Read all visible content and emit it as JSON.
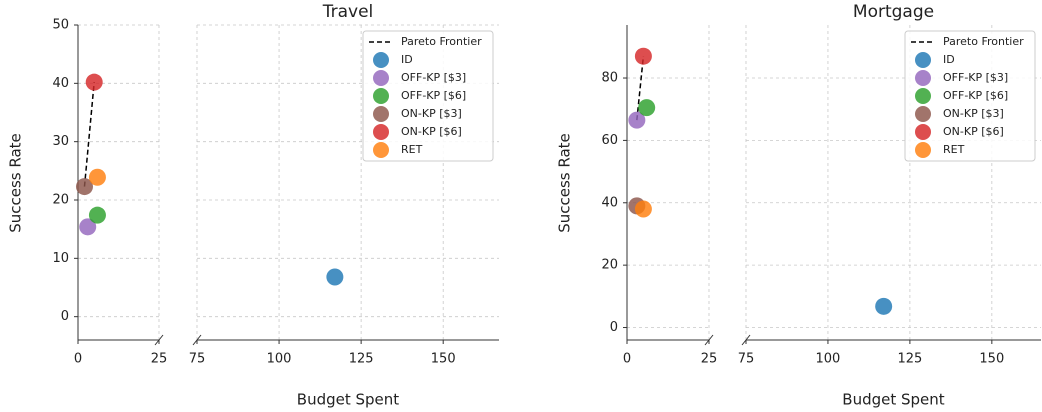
{
  "chart_data": [
    {
      "type": "scatter",
      "title": "Travel",
      "x_label": "Budget Spent",
      "y_label": "Success Rate",
      "xlim_segments": [
        [
          0,
          25
        ],
        [
          75,
          167
        ]
      ],
      "xticks": [
        0,
        25,
        75,
        100,
        125,
        150
      ],
      "ylim": [
        -4,
        50
      ],
      "yticks": [
        0,
        10,
        20,
        30,
        40,
        50
      ],
      "grid": true,
      "legend": "upper right",
      "pareto": {
        "name": "Pareto Frontier",
        "color": "#000000",
        "x": [
          2,
          5
        ],
        "values": [
          22.3,
          40.2
        ]
      },
      "series": [
        {
          "name": "ID",
          "color": "#1f77b4",
          "x": [
            117
          ],
          "values": [
            6.8
          ]
        },
        {
          "name": "OFF-KP [$3]",
          "color": "#9467bd",
          "x": [
            3
          ],
          "values": [
            15.4
          ]
        },
        {
          "name": "OFF-KP [$6]",
          "color": "#2ca02c",
          "x": [
            6
          ],
          "values": [
            17.4
          ]
        },
        {
          "name": "ON-KP [$3]",
          "color": "#8c564b",
          "x": [
            2
          ],
          "values": [
            22.3
          ]
        },
        {
          "name": "ON-KP [$6]",
          "color": "#d62728",
          "x": [
            5
          ],
          "values": [
            40.2
          ]
        },
        {
          "name": "RET",
          "color": "#ff7f0e",
          "x": [
            6
          ],
          "values": [
            23.9
          ]
        }
      ]
    },
    {
      "type": "scatter",
      "title": "Mortgage",
      "x_label": "Budget Spent",
      "y_label": "Success Rate",
      "xlim_segments": [
        [
          0,
          25
        ],
        [
          75,
          165
        ]
      ],
      "xticks": [
        0,
        25,
        75,
        100,
        125,
        150
      ],
      "ylim": [
        -4,
        97
      ],
      "yticks": [
        0,
        20,
        40,
        60,
        80
      ],
      "grid": true,
      "legend": "upper right",
      "pareto": {
        "name": "Pareto Frontier",
        "color": "#000000",
        "x": [
          3,
          5
        ],
        "values": [
          66.5,
          87
        ]
      },
      "series": [
        {
          "name": "ID",
          "color": "#1f77b4",
          "x": [
            117
          ],
          "values": [
            6.8
          ]
        },
        {
          "name": "OFF-KP [$3]",
          "color": "#9467bd",
          "x": [
            3
          ],
          "values": [
            66.5
          ]
        },
        {
          "name": "OFF-KP [$6]",
          "color": "#2ca02c",
          "x": [
            6
          ],
          "values": [
            70.5
          ]
        },
        {
          "name": "ON-KP [$3]",
          "color": "#8c564b",
          "x": [
            3
          ],
          "values": [
            39
          ]
        },
        {
          "name": "ON-KP [$6]",
          "color": "#d62728",
          "x": [
            5
          ],
          "values": [
            87
          ]
        },
        {
          "name": "RET",
          "color": "#ff7f0e",
          "x": [
            5
          ],
          "values": [
            38
          ]
        }
      ]
    }
  ]
}
